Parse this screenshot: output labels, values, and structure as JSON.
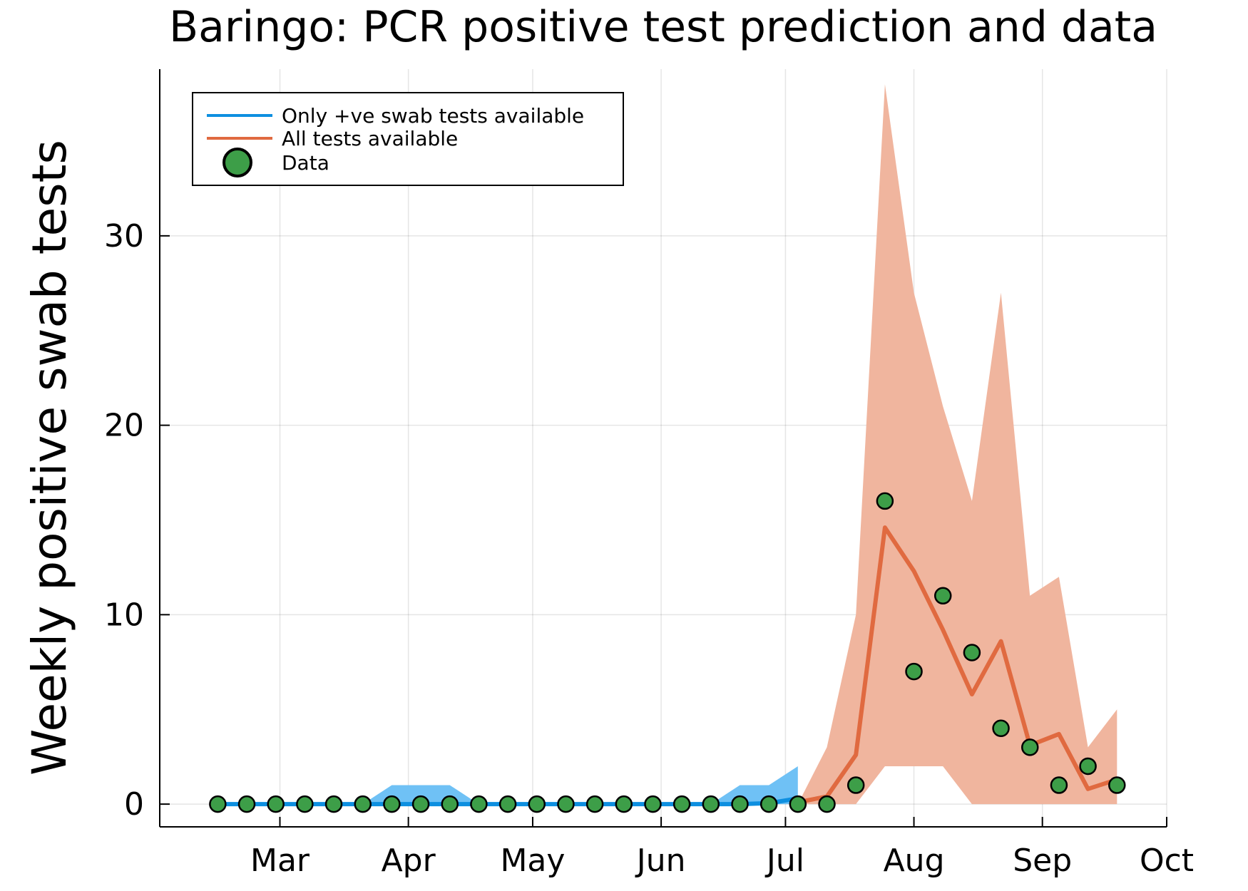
{
  "chart_data": {
    "type": "line",
    "title": "Baringo: PCR positive test prediction and data",
    "xlabel": "",
    "ylabel": "Weekly positive swab tests",
    "ylim": [
      -1.2,
      38.8
    ],
    "yticks": [
      0,
      10,
      20,
      30
    ],
    "xlim": [
      "2020-02-01",
      "2020-10-01"
    ],
    "xticks": [
      {
        "label": "Mar",
        "date": "2020-03-01"
      },
      {
        "label": "Apr",
        "date": "2020-04-01"
      },
      {
        "label": "May",
        "date": "2020-05-01"
      },
      {
        "label": "Jun",
        "date": "2020-06-01"
      },
      {
        "label": "Jul",
        "date": "2020-07-01"
      },
      {
        "label": "Aug",
        "date": "2020-08-01"
      },
      {
        "label": "Sep",
        "date": "2020-09-01"
      },
      {
        "label": "Oct",
        "date": "2020-10-01"
      }
    ],
    "grid": true,
    "legend_position": "top-left",
    "series": [
      {
        "name": "Only +ve swab tests available",
        "color": "#0d8fe0",
        "band_color": "#6fc1f5",
        "x": [
          "2020-02-15",
          "2020-02-22",
          "2020-02-29",
          "2020-03-07",
          "2020-03-14",
          "2020-03-21",
          "2020-03-28",
          "2020-04-04",
          "2020-04-11",
          "2020-04-18",
          "2020-04-25",
          "2020-05-02",
          "2020-05-09",
          "2020-05-16",
          "2020-05-23",
          "2020-05-30",
          "2020-06-06",
          "2020-06-13",
          "2020-06-20",
          "2020-06-27",
          "2020-07-04"
        ],
        "y": [
          0,
          0,
          0,
          0,
          0,
          0,
          0,
          0,
          0,
          0,
          0,
          0,
          0,
          0,
          0,
          0,
          0,
          0,
          0,
          0.05,
          0.3
        ],
        "lower": [
          0,
          0,
          0,
          0,
          0,
          0,
          0,
          0,
          0,
          0,
          0,
          0,
          0,
          0,
          0,
          0,
          0,
          0,
          0,
          0,
          0
        ],
        "upper": [
          0,
          0,
          0,
          0,
          0,
          0,
          1,
          1,
          1,
          0,
          0,
          0,
          0,
          0,
          0,
          0,
          0,
          0,
          1,
          1,
          2
        ]
      },
      {
        "name": "All tests available",
        "color": "#e06a40",
        "band_color": "#f0b59e",
        "x": [
          "2020-07-04",
          "2020-07-11",
          "2020-07-18",
          "2020-07-25",
          "2020-08-01",
          "2020-08-08",
          "2020-08-15",
          "2020-08-22",
          "2020-08-29",
          "2020-09-05",
          "2020-09-12",
          "2020-09-19"
        ],
        "y": [
          0.1,
          0.4,
          2.6,
          14.6,
          12.3,
          9.2,
          5.8,
          8.6,
          3.1,
          3.7,
          0.8,
          1.3
        ],
        "lower": [
          0,
          0,
          0,
          2,
          2,
          2,
          0,
          0,
          0,
          0,
          0,
          0
        ],
        "upper": [
          0,
          3,
          10,
          38,
          27,
          21,
          16,
          27,
          11,
          12,
          3,
          5
        ]
      }
    ],
    "data_points": {
      "name": "Data",
      "color": "#3d9e48",
      "x": [
        "2020-02-15",
        "2020-02-22",
        "2020-02-29",
        "2020-03-07",
        "2020-03-14",
        "2020-03-21",
        "2020-03-28",
        "2020-04-04",
        "2020-04-11",
        "2020-04-18",
        "2020-04-25",
        "2020-05-02",
        "2020-05-09",
        "2020-05-16",
        "2020-05-23",
        "2020-05-30",
        "2020-06-06",
        "2020-06-13",
        "2020-06-20",
        "2020-06-27",
        "2020-07-04",
        "2020-07-11",
        "2020-07-18",
        "2020-07-25",
        "2020-08-01",
        "2020-08-08",
        "2020-08-15",
        "2020-08-22",
        "2020-08-29",
        "2020-09-05",
        "2020-09-12",
        "2020-09-19"
      ],
      "y": [
        0,
        0,
        0,
        0,
        0,
        0,
        0,
        0,
        0,
        0,
        0,
        0,
        0,
        0,
        0,
        0,
        0,
        0,
        0,
        0,
        0,
        0,
        1,
        16,
        7,
        11,
        8,
        4,
        3,
        1,
        2,
        1
      ]
    }
  }
}
